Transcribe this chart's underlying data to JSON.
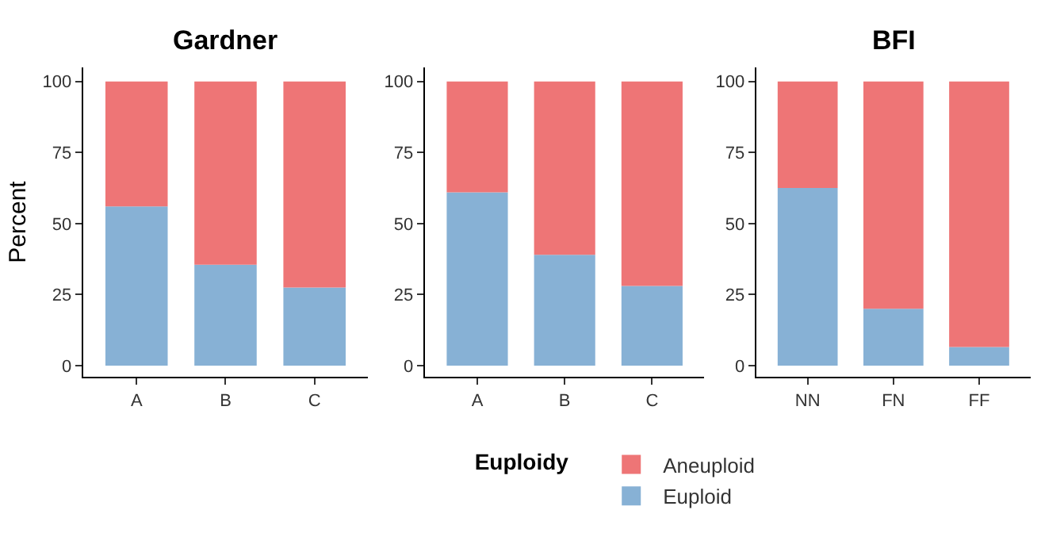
{
  "chart_data": [
    {
      "type": "bar",
      "title": "Gardner",
      "ylabel": "Percent",
      "stacked": true,
      "categories": [
        "A",
        "B",
        "C"
      ],
      "ylim": [
        -4,
        105
      ],
      "yticks": [
        0,
        25,
        50,
        75,
        100
      ],
      "legend": "bottom",
      "legend_title": "Euploidy",
      "series": [
        {
          "name": "Euploid",
          "color": "#87b1d5",
          "values": [
            56,
            35.5,
            27.5
          ]
        },
        {
          "name": "Aneuploid",
          "color": "#ee7576",
          "values": [
            44,
            64.5,
            72.5
          ]
        }
      ]
    },
    {
      "type": "bar",
      "stacked": true,
      "categories": [
        "A",
        "B",
        "C"
      ],
      "ylim": [
        -4,
        105
      ],
      "yticks": [
        0,
        25,
        50,
        75,
        100
      ],
      "series": [
        {
          "color": "#87b1d5",
          "values": [
            61,
            39,
            28
          ]
        },
        {
          "color": "#ee7576",
          "values": [
            39,
            61,
            72
          ]
        }
      ]
    },
    {
      "type": "bar",
      "title": "BFI",
      "stacked": true,
      "categories": [
        "NN",
        "FN",
        "FF"
      ],
      "ylim": [
        -4,
        105
      ],
      "yticks": [
        0,
        25,
        50,
        75,
        100
      ],
      "series": [
        {
          "color": "#87b1d5",
          "values": [
            62.5,
            20,
            6.5
          ]
        },
        {
          "color": "#ee7576",
          "values": [
            37.5,
            80,
            93.5
          ]
        }
      ]
    }
  ]
}
